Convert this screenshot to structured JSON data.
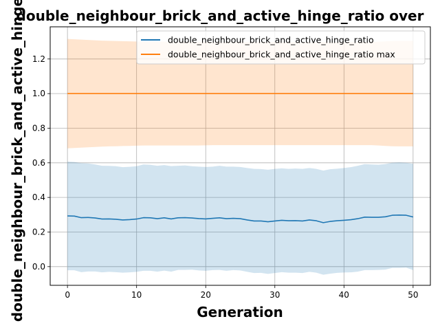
{
  "chart_data": {
    "type": "line",
    "title": "double_neighbour_brick_and_active_hinge_ratio over",
    "xlabel": "Generation",
    "ylabel": "double_neighbour_brick_and_active_hinge_",
    "xlim": [
      -2.5,
      52.5
    ],
    "ylim": [
      -0.108,
      1.386
    ],
    "xticks": [
      0,
      10,
      20,
      30,
      40,
      50
    ],
    "yticks": [
      0.0,
      0.2,
      0.4,
      0.6,
      0.8,
      1.0,
      1.2
    ],
    "xtick_labels": [
      "0",
      "10",
      "20",
      "30",
      "40",
      "50"
    ],
    "ytick_labels": [
      "0.0",
      "0.2",
      "0.4",
      "0.6",
      "0.8",
      "1.0",
      "1.2"
    ],
    "grid": true,
    "legend_position": "top-right",
    "x": [
      0,
      1,
      2,
      3,
      4,
      5,
      6,
      7,
      8,
      9,
      10,
      11,
      12,
      13,
      14,
      15,
      16,
      17,
      18,
      19,
      20,
      21,
      22,
      23,
      24,
      25,
      26,
      27,
      28,
      29,
      30,
      31,
      32,
      33,
      34,
      35,
      36,
      37,
      38,
      39,
      40,
      41,
      42,
      43,
      44,
      45,
      46,
      47,
      48,
      49,
      50
    ],
    "series": [
      {
        "name": "double_neighbour_brick_and_active_hinge_ratio",
        "color": "#1f77b4",
        "band_color": "#1f77b4",
        "values": [
          0.293,
          0.292,
          0.283,
          0.284,
          0.281,
          0.275,
          0.276,
          0.274,
          0.27,
          0.272,
          0.275,
          0.283,
          0.282,
          0.277,
          0.282,
          0.276,
          0.282,
          0.283,
          0.281,
          0.278,
          0.276,
          0.279,
          0.282,
          0.277,
          0.279,
          0.277,
          0.27,
          0.264,
          0.264,
          0.259,
          0.264,
          0.268,
          0.265,
          0.266,
          0.264,
          0.27,
          0.265,
          0.254,
          0.261,
          0.265,
          0.268,
          0.271,
          0.277,
          0.286,
          0.285,
          0.285,
          0.288,
          0.297,
          0.298,
          0.297,
          0.287
        ],
        "band_upper": [
          0.607,
          0.605,
          0.598,
          0.596,
          0.59,
          0.583,
          0.582,
          0.58,
          0.575,
          0.577,
          0.58,
          0.59,
          0.588,
          0.583,
          0.587,
          0.581,
          0.583,
          0.585,
          0.58,
          0.578,
          0.576,
          0.578,
          0.583,
          0.578,
          0.578,
          0.576,
          0.57,
          0.565,
          0.564,
          0.56,
          0.565,
          0.568,
          0.565,
          0.567,
          0.565,
          0.57,
          0.565,
          0.555,
          0.563,
          0.566,
          0.57,
          0.575,
          0.583,
          0.592,
          0.59,
          0.589,
          0.593,
          0.601,
          0.603,
          0.6,
          0.594
        ],
        "band_lower": [
          -0.021,
          -0.021,
          -0.032,
          -0.028,
          -0.028,
          -0.033,
          -0.03,
          -0.032,
          -0.035,
          -0.033,
          -0.03,
          -0.024,
          -0.024,
          -0.029,
          -0.023,
          -0.029,
          -0.019,
          -0.019,
          -0.018,
          -0.022,
          -0.024,
          -0.02,
          -0.019,
          -0.024,
          -0.02,
          -0.022,
          -0.03,
          -0.037,
          -0.036,
          -0.042,
          -0.037,
          -0.032,
          -0.035,
          -0.035,
          -0.037,
          -0.03,
          -0.035,
          -0.047,
          -0.041,
          -0.036,
          -0.034,
          -0.033,
          -0.029,
          -0.02,
          -0.02,
          -0.019,
          -0.017,
          -0.007,
          -0.007,
          -0.006,
          -0.02
        ]
      },
      {
        "name": "double_neighbour_brick_and_active_hinge_ratio max",
        "color": "#ff7f0e",
        "band_color": "#ff7f0e",
        "values": [
          1.0,
          1.0,
          1.0,
          1.0,
          1.0,
          1.0,
          1.0,
          1.0,
          1.0,
          1.0,
          1.0,
          1.0,
          1.0,
          1.0,
          1.0,
          1.0,
          1.0,
          1.0,
          1.0,
          1.0,
          1.0,
          1.0,
          1.0,
          1.0,
          1.0,
          1.0,
          1.0,
          1.0,
          1.0,
          1.0,
          1.0,
          1.0,
          1.0,
          1.0,
          1.0,
          1.0,
          1.0,
          1.0,
          1.0,
          1.0,
          1.0,
          1.0,
          1.0,
          1.0,
          1.0,
          1.0,
          1.0,
          1.0,
          1.0,
          1.0,
          1.0
        ],
        "band_upper": [
          1.316,
          1.314,
          1.312,
          1.31,
          1.308,
          1.306,
          1.305,
          1.304,
          1.303,
          1.302,
          1.301,
          1.3,
          1.3,
          1.3,
          1.3,
          1.3,
          1.3,
          1.3,
          1.3,
          1.3,
          1.299,
          1.298,
          1.298,
          1.298,
          1.298,
          1.298,
          1.298,
          1.298,
          1.298,
          1.298,
          1.298,
          1.298,
          1.298,
          1.298,
          1.298,
          1.298,
          1.298,
          1.298,
          1.298,
          1.298,
          1.298,
          1.298,
          1.298,
          1.298,
          1.298,
          1.3,
          1.302,
          1.304,
          1.305,
          1.305,
          1.305
        ],
        "band_lower": [
          0.684,
          0.686,
          0.688,
          0.69,
          0.692,
          0.694,
          0.695,
          0.696,
          0.697,
          0.698,
          0.699,
          0.7,
          0.7,
          0.7,
          0.7,
          0.7,
          0.7,
          0.7,
          0.7,
          0.7,
          0.701,
          0.702,
          0.702,
          0.702,
          0.702,
          0.702,
          0.702,
          0.702,
          0.702,
          0.702,
          0.702,
          0.702,
          0.702,
          0.702,
          0.702,
          0.702,
          0.702,
          0.702,
          0.702,
          0.702,
          0.702,
          0.702,
          0.702,
          0.702,
          0.702,
          0.7,
          0.698,
          0.696,
          0.695,
          0.695,
          0.695
        ]
      }
    ]
  }
}
